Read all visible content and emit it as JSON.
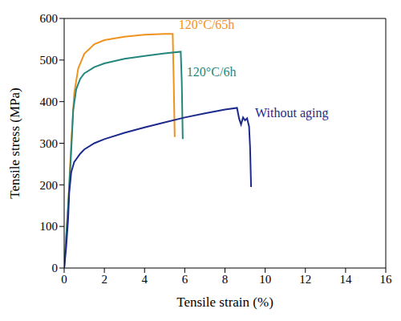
{
  "chart_data": {
    "type": "line",
    "xlabel": "Tensile strain (%)",
    "ylabel": "Tensile stress (MPa)",
    "xlim": [
      0,
      16
    ],
    "xticks": [
      0,
      2,
      4,
      6,
      8,
      10,
      12,
      14,
      16
    ],
    "ylim": [
      0,
      600
    ],
    "yticks": [
      0,
      100,
      200,
      300,
      400,
      500,
      600
    ],
    "grid": false,
    "series": [
      {
        "name": "120°C/65h",
        "color": "#f0921e",
        "x": [
          0,
          0.2,
          0.35,
          0.5,
          0.7,
          1,
          1.5,
          2,
          3,
          4,
          5,
          5.4,
          5.45,
          5.5
        ],
        "values": [
          0,
          150,
          300,
          420,
          480,
          515,
          538,
          548,
          556,
          561,
          563,
          563,
          450,
          315
        ]
      },
      {
        "name": "120°C/6h",
        "color": "#23877d",
        "x": [
          0,
          0.2,
          0.35,
          0.45,
          0.6,
          0.8,
          1,
          1.5,
          2,
          3,
          4,
          5,
          5.8,
          5.85,
          5.9
        ],
        "values": [
          0,
          150,
          280,
          380,
          430,
          455,
          468,
          483,
          492,
          503,
          510,
          516,
          520,
          450,
          310
        ]
      },
      {
        "name": "Without aging",
        "color": "#1c2a8e",
        "x": [
          0,
          0.1,
          0.2,
          0.25,
          0.35,
          0.5,
          0.8,
          1,
          1.5,
          2,
          3,
          4,
          5,
          6,
          7,
          8,
          8.6,
          8.7,
          8.8,
          8.9,
          9.0,
          9.1,
          9.2,
          9.25,
          9.3
        ],
        "values": [
          0,
          50,
          120,
          180,
          230,
          255,
          275,
          285,
          300,
          310,
          325,
          338,
          350,
          362,
          372,
          381,
          385,
          360,
          345,
          362,
          355,
          360,
          340,
          290,
          195
        ]
      }
    ]
  }
}
